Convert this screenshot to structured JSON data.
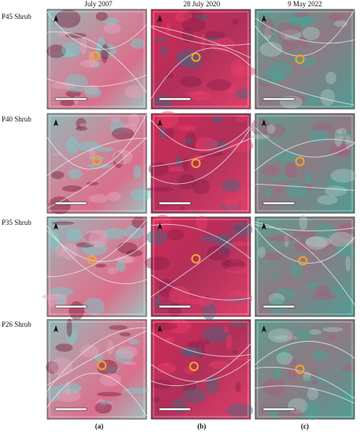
{
  "header": {
    "columns": [
      "July 2007",
      "28 July 2020",
      "9 May 2022"
    ]
  },
  "rows": [
    {
      "label": "P45 Shrub"
    },
    {
      "label": "P40 Shrub"
    },
    {
      "label": "P35 Shrub"
    },
    {
      "label": "P26 Shrub"
    }
  ],
  "captions": [
    "(a)",
    "(b)",
    "(c)"
  ]
}
